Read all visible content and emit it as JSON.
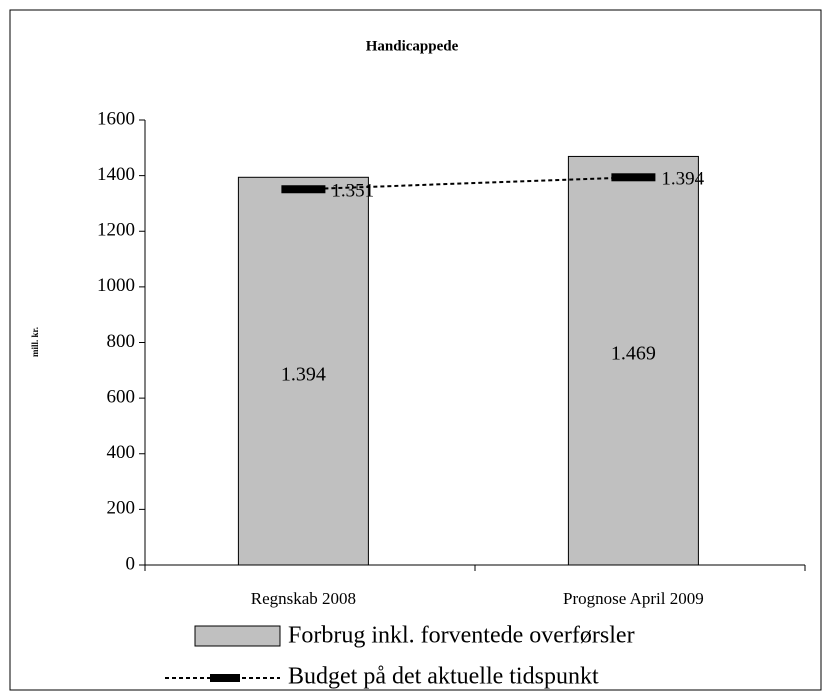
{
  "chart_data": {
    "type": "bar",
    "title": "Handicappede",
    "y_label": "mill. kr.",
    "categories": [
      "Regnskab 2008",
      "Prognose April 2009"
    ],
    "series": [
      {
        "name": "Forbrug inkl. forventede overførsler",
        "type": "bar",
        "color": "#c0c0c0",
        "values": [
          1394,
          1469
        ],
        "value_labels": [
          "1.394",
          "1.469"
        ]
      },
      {
        "name": "Budget på det aktuelle tidspunkt",
        "type": "line",
        "color": "#000000",
        "values": [
          1351,
          1394
        ],
        "value_labels": [
          "1.351",
          "1.394"
        ]
      }
    ],
    "ylim": [
      0,
      1600
    ],
    "yticks": [
      0,
      200,
      400,
      600,
      800,
      1000,
      1200,
      1400,
      1600
    ],
    "legend": "bottom"
  }
}
